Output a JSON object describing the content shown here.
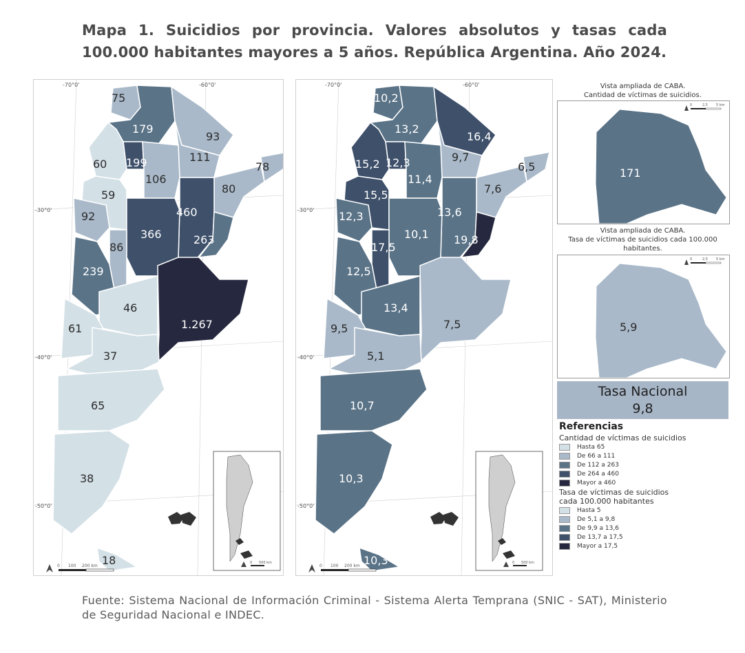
{
  "title": "Mapa 1. Suicidios por provincia. Valores absolutos y tasas cada 100.000 habitantes mayores a 5 años. República Argentina. Año 2024.",
  "colors": {
    "abs": [
      "#d3e0e6",
      "#a9b9c9",
      "#5a7387",
      "#3e506a",
      "#26283f"
    ],
    "rate": [
      "#d3e0e6",
      "#a9b9c9",
      "#5a7387",
      "#3e506a",
      "#26283f"
    ],
    "tasa_box": "#a7b6c7"
  },
  "map_absolute": {
    "lon_labels": [
      "-70°0'",
      "-60°0'"
    ],
    "lat_labels": [
      "-30°0'",
      "-40°0'",
      "-50°0'"
    ],
    "scale": [
      "0",
      "100",
      "200 km"
    ],
    "values": [
      "75",
      "179",
      "93",
      "199",
      "111",
      "60",
      "106",
      "78",
      "59",
      "80",
      "460",
      "92",
      "366",
      "263",
      "86",
      "239",
      "46",
      "1.267",
      "61",
      "37",
      "65",
      "38",
      "18"
    ]
  },
  "map_rate": {
    "lon_labels": [
      "-70°0'",
      "-60°0'"
    ],
    "lat_labels": [
      "-30°0'",
      "-40°0'",
      "-50°0'"
    ],
    "scale": [
      "0",
      "100",
      "200 km"
    ],
    "values": [
      "10,2",
      "13,2",
      "16,4",
      "15,2",
      "12,3",
      "9,7",
      "6,5",
      "11,4",
      "15,5",
      "7,6",
      "12,3",
      "13,6",
      "10,1",
      "19,8",
      "17,5",
      "12,5",
      "13,4",
      "7,5",
      "9,5",
      "5,1",
      "10,7",
      "10,3",
      "10,3"
    ]
  },
  "inset_scale": [
    "0",
    "500 km"
  ],
  "caba": {
    "abs_caption": "Vista ampliada de CABA.\nCantidad de víctimas de suicidios.",
    "abs_value": "171",
    "rate_caption": "Vista ampliada de CABA.\nTasa de víctimas de suicidios cada 100.000 habitantes.",
    "rate_value": "5,9",
    "scale": [
      "0",
      "2,5",
      "5 km"
    ]
  },
  "tasa_nacional": {
    "label": "Tasa Nacional",
    "value": "9,8"
  },
  "legend": {
    "title": "Referencias",
    "abs_title": "Cantidad de víctimas de suicidios",
    "abs_items": [
      "Hasta 65",
      "De 66 a 111",
      "De 112 a 263",
      "De 264 a 460",
      "Mayor a 460"
    ],
    "rate_title": "Tasa de víctimas de suicidios cada 100.000 habitantes",
    "rate_items": [
      "Hasta 5",
      "De 5,1 a 9,8",
      "De 9,9 a 13,6",
      "De 13,7 a 17,5",
      "Mayor a 17,5"
    ]
  },
  "source": "Fuente: Sistema Nacional de Información Criminal - Sistema Alerta Temprana (SNIC - SAT), Ministerio de Seguridad Nacional e INDEC."
}
